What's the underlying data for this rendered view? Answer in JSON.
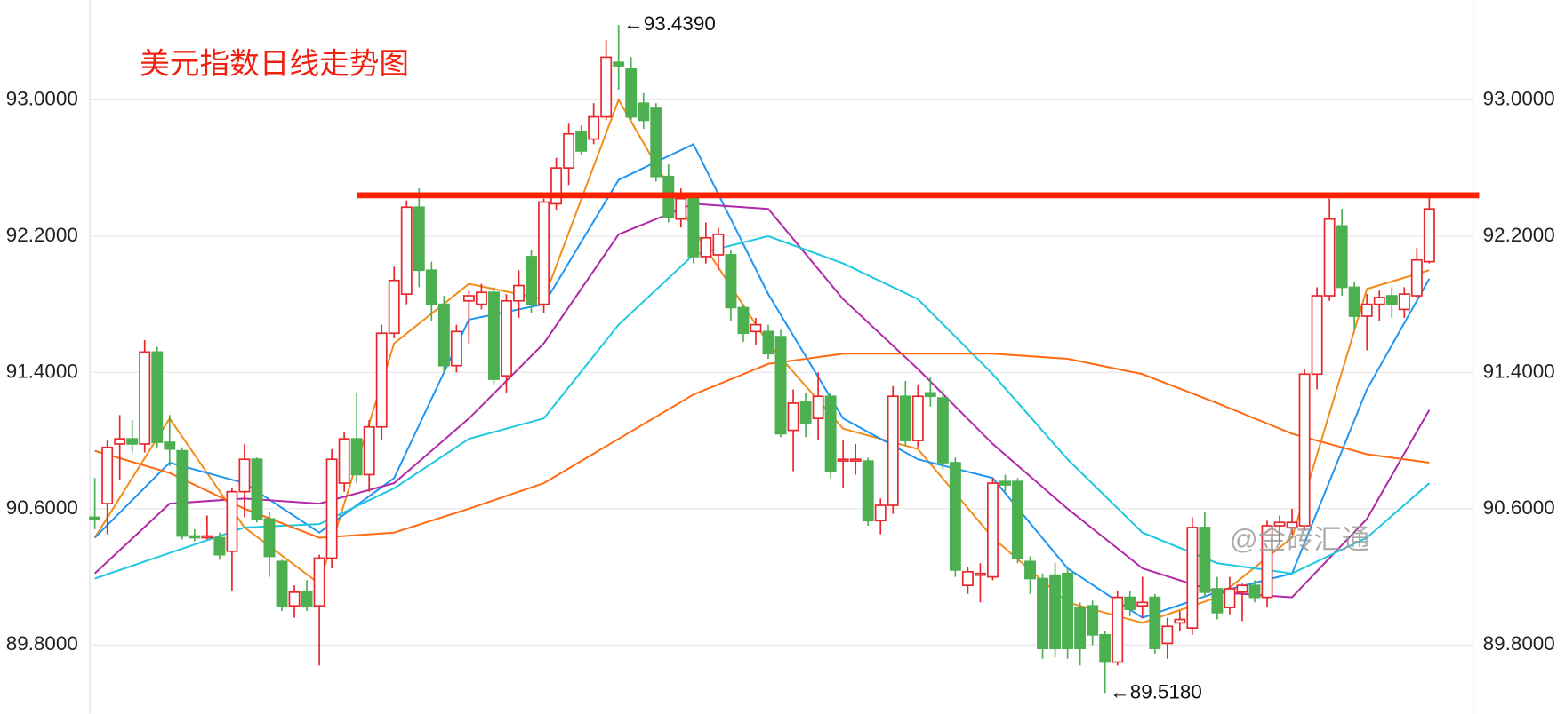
{
  "chart_data": {
    "type": "candlestick",
    "title": "美元指数日线走势图",
    "watermark": "@金砖汇通",
    "up_color": "#e8262b",
    "down_color": "#4caf50",
    "ylim": [
      89.396,
      93.585
    ],
    "yticks": [
      {
        "value": 89.8,
        "label": "89.8000"
      },
      {
        "value": 90.6,
        "label": "90.6000"
      },
      {
        "value": 91.4,
        "label": "91.4000"
      },
      {
        "value": 92.2,
        "label": "92.2000"
      },
      {
        "value": 93.0,
        "label": "93.0000"
      }
    ],
    "grid": true,
    "open": [
      90.55,
      90.63,
      90.98,
      91.01,
      90.98,
      91.52,
      90.99,
      90.94,
      90.44,
      90.43,
      90.43,
      90.35,
      90.7,
      90.89,
      90.54,
      90.29,
      90.03,
      90.11,
      90.03,
      90.31,
      90.75,
      91.01,
      90.8,
      91.08,
      91.63,
      91.86,
      92.37,
      92.0,
      91.8,
      91.44,
      91.82,
      91.8,
      91.87,
      91.38,
      91.82,
      92.08,
      91.8,
      92.39,
      92.6,
      92.81,
      92.77,
      92.9,
      93.22,
      93.18,
      92.98,
      92.95,
      92.55,
      92.3,
      92.42,
      92.08,
      92.09,
      92.09,
      91.78,
      91.64,
      91.64,
      91.61,
      91.06,
      91.23,
      91.13,
      91.26,
      90.88,
      90.88,
      90.88,
      90.53,
      90.62,
      91.26,
      91.0,
      91.28,
      91.25,
      90.87,
      90.15,
      90.21,
      90.2,
      90.76,
      90.76,
      90.29,
      90.19,
      90.21,
      90.22,
      90.02,
      90.03,
      89.86,
      89.7,
      90.08,
      90.03,
      90.08,
      89.81,
      89.93,
      89.9,
      90.49,
      90.13,
      90.02,
      90.11,
      90.15,
      90.08,
      90.5,
      90.49,
      90.5,
      91.39,
      91.85,
      92.26,
      91.9,
      91.73,
      91.8,
      91.85,
      91.77,
      91.85,
      92.05
    ],
    "high": [
      90.78,
      91.0,
      91.15,
      91.12,
      91.59,
      91.55,
      91.15,
      90.96,
      90.48,
      90.56,
      90.46,
      90.72,
      90.98,
      90.9,
      90.58,
      90.3,
      90.15,
      90.18,
      90.33,
      90.95,
      91.05,
      91.28,
      91.12,
      91.68,
      92.02,
      92.41,
      92.48,
      92.05,
      91.85,
      91.68,
      91.88,
      91.92,
      91.9,
      91.86,
      92.0,
      92.12,
      92.42,
      92.66,
      92.86,
      92.85,
      92.98,
      93.35,
      93.439,
      93.25,
      93.04,
      92.98,
      92.62,
      92.48,
      92.45,
      92.28,
      92.25,
      92.12,
      91.8,
      91.72,
      91.68,
      91.65,
      91.3,
      91.28,
      91.4,
      91.28,
      91.0,
      90.98,
      90.9,
      90.66,
      91.32,
      91.35,
      91.33,
      91.37,
      91.3,
      90.9,
      90.26,
      90.28,
      90.78,
      90.8,
      90.78,
      90.32,
      90.22,
      90.28,
      90.25,
      90.05,
      90.06,
      89.88,
      90.12,
      90.12,
      90.2,
      90.1,
      89.96,
      90.0,
      90.55,
      90.58,
      90.2,
      90.2,
      90.16,
      90.18,
      90.53,
      90.56,
      90.6,
      91.42,
      91.9,
      92.42,
      92.36,
      91.93,
      91.86,
      91.88,
      91.9,
      91.9,
      92.13,
      92.45
    ],
    "low": [
      90.48,
      90.45,
      90.77,
      90.93,
      90.93,
      90.96,
      90.85,
      90.42,
      90.41,
      90.42,
      90.3,
      90.12,
      90.55,
      90.52,
      90.2,
      90.0,
      89.96,
      90.0,
      89.68,
      90.25,
      90.7,
      90.75,
      90.7,
      91.0,
      91.6,
      91.8,
      91.9,
      91.7,
      91.4,
      91.4,
      91.57,
      91.77,
      91.33,
      91.28,
      91.72,
      91.75,
      91.75,
      92.35,
      92.5,
      92.68,
      92.74,
      92.88,
      93.06,
      92.88,
      92.83,
      92.52,
      92.28,
      92.25,
      92.04,
      92.04,
      92.0,
      91.7,
      91.58,
      91.56,
      91.48,
      91.02,
      90.82,
      91.02,
      91.0,
      90.78,
      90.72,
      90.8,
      90.5,
      90.45,
      90.57,
      90.97,
      90.96,
      91.2,
      90.83,
      90.2,
      90.1,
      90.05,
      90.18,
      90.7,
      90.28,
      90.1,
      89.72,
      89.73,
      89.72,
      89.68,
      89.8,
      89.518,
      89.68,
      89.97,
      89.96,
      89.75,
      89.72,
      89.88,
      89.86,
      90.08,
      89.95,
      89.98,
      89.94,
      90.05,
      90.02,
      90.4,
      90.45,
      90.47,
      91.3,
      91.82,
      91.85,
      91.65,
      91.53,
      91.7,
      91.72,
      91.72,
      91.84,
      92.04
    ],
    "close": [
      90.54,
      90.96,
      91.01,
      90.98,
      91.52,
      90.99,
      90.95,
      90.44,
      90.43,
      90.44,
      90.33,
      90.7,
      90.89,
      90.54,
      90.32,
      90.03,
      90.11,
      90.03,
      90.31,
      90.89,
      91.01,
      90.8,
      91.08,
      91.63,
      91.94,
      92.37,
      92.0,
      91.8,
      91.44,
      91.64,
      91.85,
      91.87,
      91.36,
      91.82,
      91.91,
      91.8,
      92.4,
      92.6,
      92.8,
      92.7,
      92.9,
      93.25,
      93.2,
      92.9,
      92.88,
      92.55,
      92.31,
      92.42,
      92.08,
      92.19,
      92.21,
      91.78,
      91.63,
      91.68,
      91.51,
      91.04,
      91.22,
      91.1,
      91.26,
      90.82,
      90.89,
      90.89,
      90.53,
      90.62,
      91.26,
      91.0,
      91.26,
      91.26,
      90.87,
      90.24,
      90.23,
      90.22,
      90.75,
      90.74,
      90.31,
      90.19,
      89.78,
      89.78,
      89.78,
      89.78,
      89.86,
      89.7,
      90.08,
      90.01,
      90.05,
      89.78,
      89.91,
      89.95,
      90.49,
      90.11,
      89.99,
      90.13,
      90.15,
      90.08,
      90.5,
      90.52,
      90.52,
      91.39,
      91.85,
      92.3,
      91.9,
      91.73,
      91.8,
      91.84,
      91.8,
      91.86,
      92.06,
      92.36
    ],
    "ma_x": [
      0,
      6,
      12,
      18,
      24,
      30,
      36,
      42,
      48,
      54,
      60,
      66,
      72,
      78,
      84,
      90,
      96,
      102,
      107
    ],
    "series": [
      {
        "color": "#f28c1c",
        "values": [
          90.43,
          91.13,
          90.49,
          90.16,
          91.57,
          91.92,
          91.83,
          93.0,
          92.24,
          91.57,
          91.07,
          90.95,
          90.43,
          90.05,
          89.93,
          90.08,
          90.43,
          91.89,
          92.0
        ]
      },
      {
        "color": "#2196f3",
        "values": [
          90.43,
          90.87,
          90.75,
          90.46,
          90.78,
          91.71,
          91.8,
          92.53,
          92.74,
          91.86,
          91.13,
          90.89,
          90.78,
          90.25,
          89.96,
          90.11,
          90.22,
          91.3,
          91.95
        ]
      },
      {
        "color": "#b02aa8",
        "values": [
          90.22,
          90.63,
          90.66,
          90.63,
          90.75,
          91.13,
          91.57,
          92.21,
          92.39,
          92.36,
          91.83,
          91.42,
          90.98,
          90.6,
          90.25,
          90.11,
          90.08,
          90.54,
          91.18
        ]
      },
      {
        "color": "#1ec8e0",
        "values": [
          90.19,
          90.34,
          90.49,
          90.51,
          90.72,
          91.01,
          91.13,
          91.68,
          92.09,
          92.2,
          92.04,
          91.83,
          91.39,
          90.89,
          90.46,
          90.28,
          90.22,
          90.43,
          90.75
        ]
      },
      {
        "color": "#ff6a13",
        "values": [
          90.94,
          90.81,
          90.6,
          90.43,
          90.46,
          90.6,
          90.75,
          91.01,
          91.27,
          91.45,
          91.51,
          91.51,
          91.51,
          91.48,
          91.39,
          91.22,
          91.04,
          90.92,
          90.87
        ]
      }
    ],
    "level_line": {
      "value": 92.44,
      "color": "#ff2200"
    },
    "annotations": [
      {
        "text": "←93.4390",
        "index": 42,
        "value": 93.439
      },
      {
        "text": "←89.5180",
        "index": 81,
        "value": 89.518
      }
    ]
  }
}
